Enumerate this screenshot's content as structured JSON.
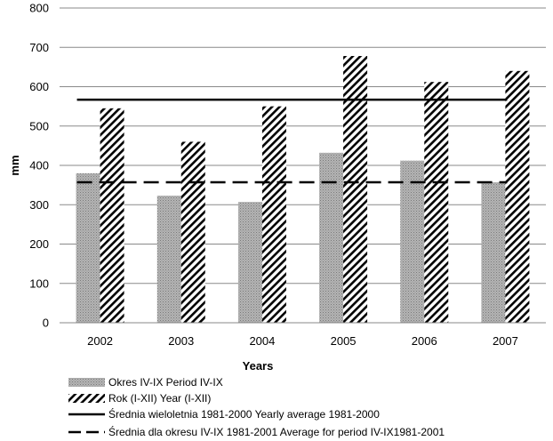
{
  "chart_data": {
    "type": "bar",
    "categories": [
      "2002",
      "2003",
      "2004",
      "2005",
      "2006",
      "2007"
    ],
    "series": [
      {
        "name": "Okres IV-IX Period  IV-IX",
        "values": [
          380,
          323,
          307,
          432,
          412,
          357
        ],
        "color": "#a0a0a0",
        "pattern": "dotted-gray"
      },
      {
        "name": "Rok (I-XII) Year (I-XII)",
        "values": [
          545,
          460,
          550,
          678,
          612,
          640
        ],
        "color": "#000000",
        "pattern": "diagonal-hatch"
      }
    ],
    "reference_lines": [
      {
        "name": "Średnia wieloletnia 1981-2000 Yearly average  1981-2000",
        "value": 567,
        "style": "solid",
        "color": "#000000"
      },
      {
        "name": "Średnia dla okresu IV-IX 1981-2001 Average for period IV-IX1981-2001",
        "value": 357,
        "style": "dashed",
        "color": "#000000"
      }
    ],
    "title": "",
    "xlabel": "Years",
    "ylabel": "mm",
    "ylim": [
      0,
      800
    ],
    "yticks": [
      "0",
      "100",
      "200",
      "300",
      "400",
      "500",
      "600",
      "700",
      "800"
    ],
    "grid": true,
    "legend_position": "bottom"
  }
}
